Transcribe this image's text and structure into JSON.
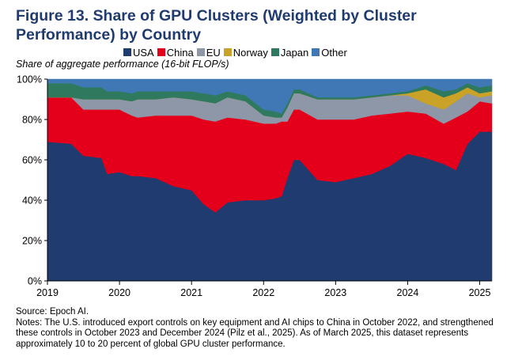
{
  "figure": {
    "title": "Figure 13. Share of GPU Clusters (Weighted by Cluster Performance) by Country",
    "subtitle": "Share of aggregate performance (16-bit FLOP/s)",
    "source": "Source: Epoch AI.",
    "notes": "Notes: The U.S. introduced export controls on key equipment and AI chips to China in October 2022, and strengthened these controls in October 2023 and December 2024 (Pilz et al., 2025). As of March 2025, this dataset represents approximately 10 to 20 percent of global GPU cluster performance."
  },
  "chart_data": {
    "type": "area",
    "stacked": true,
    "ylim": [
      0,
      100
    ],
    "xlim": [
      2019.0,
      2025.17
    ],
    "y_ticks": [
      "0%",
      "20%",
      "40%",
      "60%",
      "80%",
      "100%"
    ],
    "x_ticks": [
      "2019",
      "2020",
      "2021",
      "2022",
      "2023",
      "2024",
      "2025"
    ],
    "legend_position": "top",
    "x": [
      2019.0,
      2019.33,
      2019.5,
      2019.75,
      2019.83,
      2020.0,
      2020.17,
      2020.25,
      2020.5,
      2020.75,
      2021.0,
      2021.17,
      2021.33,
      2021.5,
      2021.75,
      2022.0,
      2022.17,
      2022.25,
      2022.33,
      2022.42,
      2022.5,
      2022.75,
      2023.0,
      2023.25,
      2023.5,
      2023.75,
      2024.0,
      2024.25,
      2024.5,
      2024.67,
      2024.83,
      2025.0,
      2025.17
    ],
    "series": [
      {
        "name": "USA",
        "color": "#1f3b70",
        "values": [
          69,
          68,
          62,
          61,
          53,
          54,
          52,
          52,
          51,
          47,
          45,
          38,
          34,
          39,
          40,
          40,
          41,
          42,
          51,
          60,
          60,
          50,
          49,
          51,
          53,
          57,
          63,
          61,
          58,
          55,
          68,
          74,
          74
        ]
      },
      {
        "name": "China",
        "color": "#e4001b",
        "values": [
          22,
          23,
          23,
          24,
          32,
          31,
          30,
          29,
          31,
          35,
          37,
          42,
          45,
          42,
          40,
          38,
          37,
          37,
          28,
          25,
          25,
          30,
          31,
          29,
          29,
          26,
          21,
          22,
          20,
          26,
          16,
          15,
          14
        ]
      },
      {
        "name": "EU",
        "color": "#8e97a8",
        "values": [
          0,
          0,
          5,
          5,
          5,
          5,
          7,
          9,
          8,
          9,
          8,
          9,
          9,
          10,
          9,
          4,
          3,
          2,
          7,
          8,
          8,
          10,
          10,
          10,
          9,
          9,
          8,
          5,
          7,
          8,
          9,
          2,
          4
        ]
      },
      {
        "name": "Norway",
        "color": "#c9a227",
        "values": [
          0,
          0,
          0,
          0,
          0,
          0,
          0,
          0,
          0,
          0,
          0,
          0,
          0,
          0,
          0,
          0,
          0,
          0,
          0,
          0,
          0,
          0,
          0,
          0,
          0,
          0,
          1,
          7,
          6,
          4,
          3,
          2,
          2
        ]
      },
      {
        "name": "Japan",
        "color": "#2f7a5f",
        "values": [
          7,
          7,
          6,
          6,
          4,
          4,
          4,
          4,
          4,
          3,
          4,
          4,
          4,
          3,
          3,
          3,
          3,
          2,
          2,
          2,
          2,
          1,
          1,
          1,
          1,
          1,
          1,
          2,
          3,
          2,
          2,
          3,
          3
        ]
      },
      {
        "name": "Other",
        "color": "#3f78b5",
        "values": [
          2,
          2,
          4,
          4,
          6,
          6,
          7,
          6,
          6,
          6,
          6,
          7,
          8,
          6,
          8,
          15,
          16,
          17,
          12,
          5,
          5,
          9,
          9,
          9,
          8,
          7,
          6,
          3,
          6,
          5,
          2,
          4,
          3
        ]
      }
    ]
  }
}
